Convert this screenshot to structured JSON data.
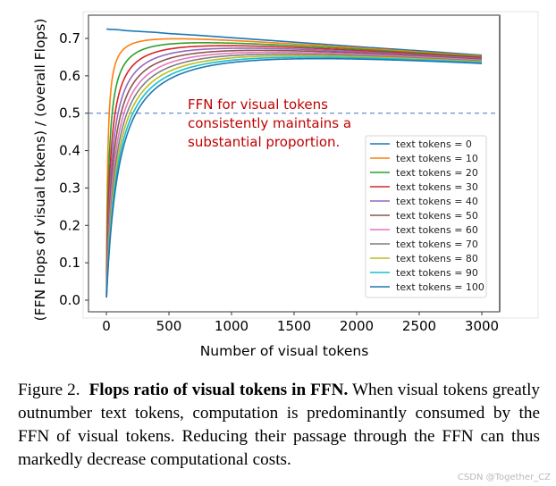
{
  "chart_data": {
    "type": "line",
    "title": "",
    "xlabel": "Number of visual tokens",
    "ylabel": "(FFN Flops of visual tokens)  /  (overall Flops)",
    "xlim": [
      -150,
      3150
    ],
    "ylim": [
      -0.03,
      0.755
    ],
    "xticks": [
      0,
      500,
      1000,
      1500,
      2000,
      2500,
      3000
    ],
    "xtick_labels": [
      "0",
      "500",
      "1000",
      "1500",
      "2000",
      "2500",
      "3000"
    ],
    "yticks": [
      0.0,
      0.1,
      0.2,
      0.3,
      0.4,
      0.5,
      0.6,
      0.7
    ],
    "ytick_labels": [
      "0.0",
      "0.1",
      "0.2",
      "0.3",
      "0.4",
      "0.5",
      "0.6",
      "0.7"
    ],
    "grid": false,
    "legend_position": "lower right",
    "x": [
      1,
      10,
      25,
      50,
      100,
      150,
      200,
      300,
      400,
      500,
      750,
      1000,
      1500,
      2000,
      2500,
      3000
    ],
    "series": [
      {
        "name": "text tokens = 0",
        "color": "#1f77b4",
        "values": [
          0.725,
          0.725,
          0.724,
          0.724,
          0.723,
          0.721,
          0.72,
          0.718,
          0.716,
          0.713,
          0.708,
          0.702,
          0.69,
          0.678,
          0.667,
          0.655
        ]
      },
      {
        "name": "text tokens = 10",
        "color": "#ff7f0e",
        "values": [
          0.066,
          0.362,
          0.517,
          0.603,
          0.657,
          0.676,
          0.686,
          0.695,
          0.699,
          0.699,
          0.699,
          0.695,
          0.686,
          0.676,
          0.664,
          0.653
        ]
      },
      {
        "name": "text tokens = 20",
        "color": "#2ca02c",
        "values": [
          0.035,
          0.242,
          0.402,
          0.517,
          0.603,
          0.636,
          0.655,
          0.674,
          0.682,
          0.685,
          0.69,
          0.688,
          0.681,
          0.672,
          0.662,
          0.651
        ]
      },
      {
        "name": "text tokens = 30",
        "color": "#d62728",
        "values": [
          0.023,
          0.181,
          0.329,
          0.452,
          0.557,
          0.601,
          0.626,
          0.654,
          0.666,
          0.672,
          0.681,
          0.681,
          0.677,
          0.669,
          0.659,
          0.649
        ]
      },
      {
        "name": "text tokens = 40",
        "color": "#9467bd",
        "values": [
          0.018,
          0.145,
          0.278,
          0.402,
          0.517,
          0.569,
          0.6,
          0.634,
          0.65,
          0.659,
          0.672,
          0.675,
          0.673,
          0.666,
          0.657,
          0.647
        ]
      },
      {
        "name": "text tokens = 50",
        "color": "#8c564b",
        "values": [
          0.014,
          0.121,
          0.241,
          0.362,
          0.482,
          0.541,
          0.576,
          0.616,
          0.636,
          0.647,
          0.664,
          0.669,
          0.668,
          0.663,
          0.655,
          0.645
        ]
      },
      {
        "name": "text tokens = 60",
        "color": "#e377c2",
        "values": [
          0.012,
          0.104,
          0.213,
          0.329,
          0.452,
          0.515,
          0.554,
          0.598,
          0.622,
          0.636,
          0.656,
          0.662,
          0.664,
          0.66,
          0.652,
          0.643
        ]
      },
      {
        "name": "text tokens = 70",
        "color": "#7f7f7f",
        "values": [
          0.01,
          0.091,
          0.19,
          0.302,
          0.425,
          0.492,
          0.533,
          0.582,
          0.609,
          0.624,
          0.648,
          0.656,
          0.66,
          0.657,
          0.65,
          0.641
        ]
      },
      {
        "name": "text tokens = 80",
        "color": "#bcbd22",
        "values": [
          0.009,
          0.081,
          0.172,
          0.278,
          0.402,
          0.47,
          0.514,
          0.567,
          0.596,
          0.614,
          0.64,
          0.65,
          0.656,
          0.654,
          0.648,
          0.639
        ]
      },
      {
        "name": "text tokens = 90",
        "color": "#17becf",
        "values": [
          0.008,
          0.072,
          0.157,
          0.258,
          0.381,
          0.45,
          0.497,
          0.552,
          0.584,
          0.603,
          0.632,
          0.644,
          0.652,
          0.651,
          0.646,
          0.637
        ]
      },
      {
        "name": "text tokens = 100",
        "color": "#1f77b4",
        "values": [
          0.007,
          0.066,
          0.145,
          0.241,
          0.362,
          0.432,
          0.48,
          0.538,
          0.572,
          0.594,
          0.625,
          0.638,
          0.648,
          0.649,
          0.644,
          0.635
        ]
      }
    ],
    "reference_line": {
      "y": 0.5,
      "style": "dashed",
      "color": "#4472c4"
    },
    "annotation": {
      "lines": [
        "FFN for visual tokens",
        "consistently maintains a",
        "substantial proportion."
      ],
      "color": "#c00000"
    }
  },
  "caption": {
    "figure_label": "Figure 2.",
    "bold_title": "Flops ratio of visual tokens in FFN.",
    "body": "When visual tokens greatly outnumber text tokens, computation is predominantly consumed by the FFN of visual tokens. Reducing their passage through the FFN can thus markedly decrease computational costs."
  },
  "watermark": "CSDN @Together_CZ"
}
